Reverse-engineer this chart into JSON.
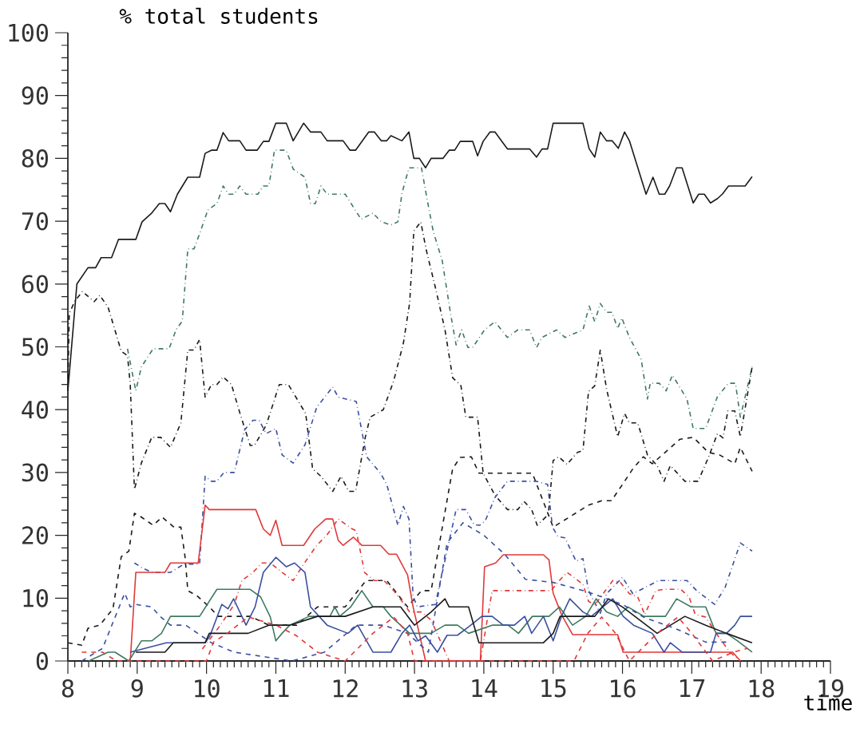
{
  "chart_data": {
    "type": "line",
    "xlabel": "time",
    "ylabel": "% total students",
    "xlim": [
      8,
      19
    ],
    "xticks": [
      8,
      9,
      10,
      11,
      12,
      13,
      14,
      15,
      16,
      17,
      18,
      19
    ],
    "ylim": [
      0,
      100
    ],
    "yticks": [
      0,
      10,
      20,
      30,
      40,
      50,
      60,
      70,
      80,
      90,
      100
    ],
    "series": [
      {
        "color": "#1a1a1a",
        "line_style": "solid",
        "x": [
          8.0,
          8.13,
          8.29,
          8.4,
          8.48,
          8.63,
          8.73,
          8.98,
          9.07,
          9.21,
          9.32,
          9.4,
          9.48,
          9.58,
          9.73,
          9.9,
          9.98,
          10.07,
          10.15,
          10.24,
          10.32,
          10.48,
          10.57,
          10.73,
          10.82,
          10.9,
          11.0,
          11.15,
          11.25,
          11.4,
          11.5,
          11.65,
          11.74,
          11.97,
          12.07,
          12.15,
          12.34,
          12.42,
          12.52,
          12.6,
          12.66,
          12.82,
          12.92,
          12.99,
          13.07,
          13.16,
          13.24,
          13.41,
          13.5,
          13.58,
          13.66,
          13.84,
          13.91,
          13.99,
          14.09,
          14.16,
          14.34,
          14.66,
          14.76,
          14.84,
          14.92,
          15.0,
          15.43,
          15.52,
          15.6,
          15.68,
          15.77,
          15.85,
          15.94,
          16.03,
          16.1,
          16.34,
          16.44,
          16.53,
          16.61,
          16.68,
          16.78,
          16.86,
          17.02,
          17.1,
          17.18,
          17.27,
          17.37,
          17.44,
          17.53,
          17.77,
          17.87
        ],
        "values": [
          43,
          60,
          62.6,
          62.6,
          64.2,
          64.2,
          67.1,
          67.1,
          69.9,
          71.3,
          72.8,
          72.8,
          71.5,
          74.3,
          77,
          77,
          80.8,
          81.3,
          81.3,
          84.1,
          82.8,
          82.8,
          81.3,
          81.3,
          82.7,
          82.7,
          85.6,
          85.6,
          82.8,
          85.6,
          84.2,
          84.2,
          82.8,
          82.8,
          81.3,
          81.3,
          84.2,
          84.2,
          82.8,
          82.8,
          83.6,
          82.8,
          84.2,
          80,
          80,
          78.5,
          80,
          80,
          81.3,
          81.3,
          82.7,
          82.7,
          80.4,
          82.7,
          84.2,
          84.2,
          81.5,
          81.5,
          80.2,
          81.5,
          81.5,
          85.6,
          85.6,
          81.5,
          80.2,
          84.2,
          82.8,
          82.8,
          81.6,
          84.2,
          82.8,
          74.3,
          77,
          74.3,
          74.3,
          75.6,
          78.5,
          78.5,
          72.9,
          74.3,
          74.3,
          72.9,
          73.6,
          74.3,
          75.6,
          75.6,
          77.1
        ]
      },
      {
        "color": "#3f7a62",
        "line_style": "dashdot",
        "x": [
          8.86,
          8.98,
          9.06,
          9.23,
          9.46,
          9.56,
          9.65,
          9.73,
          9.82,
          9.9,
          10.02,
          10.15,
          10.24,
          10.32,
          10.4,
          10.48,
          10.57,
          10.74,
          10.82,
          10.9,
          10.98,
          11.15,
          11.25,
          11.42,
          11.5,
          11.57,
          11.65,
          11.74,
          12.0,
          12.23,
          12.4,
          12.52,
          12.66,
          12.76,
          12.82,
          12.92,
          13.1,
          13.19,
          13.27,
          13.4,
          13.52,
          13.6,
          13.68,
          13.77,
          13.84,
          14.01,
          14.16,
          14.34,
          14.49,
          14.66,
          14.76,
          14.84,
          15.05,
          15.17,
          15.43,
          15.52,
          15.6,
          15.68,
          15.77,
          15.85,
          15.93,
          15.99,
          16.1,
          16.27,
          16.36,
          16.4,
          16.53,
          16.63,
          16.72,
          16.93,
          17.02,
          17.2,
          17.37,
          17.53,
          17.63,
          17.7,
          17.87
        ],
        "values": [
          49.7,
          43,
          46.8,
          49.7,
          49.7,
          52.7,
          54.1,
          65.6,
          65.6,
          68,
          71.8,
          72.8,
          75.6,
          74.3,
          74.3,
          75.6,
          74.3,
          74.3,
          75.6,
          75.6,
          81.3,
          81.3,
          78.3,
          77,
          72.8,
          72.8,
          75.6,
          74.3,
          74.3,
          70.3,
          71.3,
          69.9,
          69.4,
          69.9,
          74.5,
          78.5,
          78.5,
          73,
          68.4,
          63.7,
          55.3,
          50.3,
          52.7,
          49.9,
          49.9,
          52.7,
          54,
          51.5,
          52.7,
          52.7,
          49.9,
          51.5,
          52.7,
          51.5,
          52.7,
          56.5,
          54,
          56.9,
          55.5,
          55.5,
          52.9,
          54.6,
          51.5,
          48,
          41.7,
          44.2,
          44.2,
          43,
          45.5,
          41.7,
          37,
          37,
          42.1,
          44.2,
          44.2,
          38.8,
          46.8
        ]
      },
      {
        "color": "#1a1a1a",
        "line_style": "dashdot",
        "x": [
          8.0,
          8.02,
          8.1,
          8.21,
          8.38,
          8.46,
          8.58,
          8.77,
          8.86,
          8.9,
          8.96,
          9.06,
          9.21,
          9.34,
          9.48,
          9.63,
          9.73,
          9.82,
          9.9,
          9.98,
          10.07,
          10.15,
          10.24,
          10.36,
          10.48,
          10.63,
          10.69,
          10.86,
          11.05,
          11.18,
          11.43,
          11.53,
          11.65,
          11.82,
          11.94,
          12.05,
          12.15,
          12.29,
          12.36,
          12.55,
          12.7,
          12.84,
          12.93,
          12.99,
          13.09,
          13.17,
          13.3,
          13.44,
          13.55,
          13.67,
          13.74,
          13.91,
          13.99,
          14.16,
          14.34,
          14.49,
          14.58,
          14.69,
          14.77,
          14.93,
          15.0,
          15.08,
          15.2,
          15.35,
          15.43,
          15.51,
          15.6,
          15.68,
          15.77,
          15.93,
          16.03,
          16.1,
          16.22,
          16.36,
          16.5,
          16.6,
          16.69,
          16.9,
          17.09,
          17.24,
          17.37,
          17.45,
          17.52,
          17.62,
          17.7,
          17.87
        ],
        "values": [
          43,
          55.3,
          57.3,
          58.8,
          57.2,
          58.2,
          56.3,
          49.3,
          48.6,
          44,
          27.3,
          31.5,
          35.6,
          35.6,
          34,
          37.9,
          49.5,
          49.5,
          51.2,
          42,
          44,
          44,
          45.2,
          44,
          39.5,
          34.3,
          34.3,
          37.5,
          44,
          44,
          39.4,
          30.6,
          29.4,
          27,
          29.4,
          27,
          27,
          35.6,
          38.8,
          40,
          44.6,
          50.6,
          57,
          68.4,
          69.9,
          65.4,
          59.5,
          52.7,
          45.1,
          43.8,
          38.8,
          38.8,
          29.9,
          26.4,
          24.1,
          24.1,
          25.4,
          24.1,
          21.6,
          23.3,
          31.9,
          32.5,
          31.3,
          33.2,
          33.5,
          42.9,
          43.8,
          49.5,
          43.3,
          35.7,
          39.4,
          37.9,
          37.9,
          32.8,
          31.1,
          28.6,
          31.1,
          28.6,
          28.6,
          32.4,
          36.2,
          35.5,
          39.8,
          39.8,
          35.7,
          46.8
        ]
      },
      {
        "color": "#1a1a1a",
        "line_style": "dashed",
        "x": [
          8.0,
          8.2,
          8.29,
          8.46,
          8.65,
          8.77,
          8.88,
          8.96,
          9.06,
          9.23,
          9.36,
          9.53,
          9.63,
          9.69,
          9.73,
          9.87,
          10.04,
          10.17,
          10.63,
          10.9,
          11.3,
          11.6,
          12.0,
          12.3,
          12.6,
          12.9,
          13.1,
          13.24,
          13.55,
          13.66,
          13.82,
          13.93,
          14.28,
          14.7,
          15.0,
          15.51,
          15.7,
          15.84,
          16.0,
          16.15,
          16.3,
          16.43,
          16.83,
          17.02,
          17.24,
          17.4,
          17.62,
          17.7,
          17.87
        ],
        "values": [
          2.9,
          2.5,
          5.2,
          5.7,
          8.3,
          16.6,
          17.5,
          23.5,
          22.9,
          21.6,
          22.9,
          21.3,
          21.3,
          16.6,
          11.2,
          10.3,
          8.6,
          7.1,
          7.1,
          5.7,
          5.7,
          8.6,
          8.6,
          12.8,
          12.8,
          8.6,
          11.2,
          11.2,
          30.6,
          32.4,
          32.5,
          29.9,
          29.9,
          29.9,
          21.3,
          24.8,
          25.5,
          25.5,
          28.1,
          30.6,
          32.5,
          31.4,
          35.3,
          35.6,
          33.2,
          32.8,
          31.4,
          34,
          30.2
        ]
      },
      {
        "color": "#3b4fa0",
        "line_style": "dashdot",
        "x": [
          8.96,
          9.06,
          9.21,
          9.48,
          9.67,
          9.9,
          9.98,
          10.07,
          10.15,
          10.25,
          10.4,
          10.55,
          10.67,
          10.76,
          10.86,
          11.0,
          11.09,
          11.25,
          11.42,
          11.59,
          11.82,
          11.9,
          12.16,
          12.31,
          12.51,
          12.6,
          12.76,
          12.84,
          12.92,
          12.98,
          13.04,
          13.3,
          13.6,
          13.74,
          13.86,
          13.94,
          14.02,
          14.16,
          14.34,
          14.76,
          14.92,
          14.99,
          15.07,
          15.17,
          15.33,
          15.43,
          15.51,
          15.68,
          15.77,
          16.0,
          16.15,
          16.52,
          16.93,
          17.07,
          17.33,
          17.48,
          17.7,
          17.87
        ],
        "values": [
          15.6,
          14.9,
          14.1,
          14.1,
          15.4,
          15.4,
          29.4,
          28.6,
          28.6,
          30,
          30,
          36.8,
          38.3,
          38.3,
          36.2,
          37,
          32.8,
          31.5,
          34.4,
          40.4,
          43.6,
          42,
          41.3,
          32.5,
          29.9,
          28.1,
          21.6,
          24.6,
          22.6,
          10.3,
          8.6,
          9,
          24.1,
          24.1,
          21.7,
          21.6,
          22.3,
          26,
          28.6,
          28.6,
          28.1,
          21.3,
          19.8,
          19.6,
          15.9,
          16.3,
          11.2,
          7.6,
          10.7,
          13.3,
          10.7,
          12.8,
          12.8,
          11.2,
          9,
          11.7,
          18.8,
          17.5
        ]
      },
      {
        "color": "#e0393a",
        "line_style": "solid",
        "x": [
          8.9,
          8.98,
          9.4,
          9.48,
          9.88,
          9.98,
          10.04,
          10.71,
          10.82,
          10.92,
          11.0,
          11.09,
          11.4,
          11.56,
          11.72,
          11.82,
          11.9,
          11.97,
          12.12,
          12.24,
          12.51,
          12.63,
          12.74,
          12.9,
          12.98,
          13.16,
          13.95,
          14.01,
          14.17,
          14.28,
          14.86,
          14.94,
          15.0,
          15.12,
          15.28,
          15.93,
          16.01,
          17.59,
          17.7
        ],
        "values": [
          0,
          14.1,
          14.1,
          15.6,
          15.6,
          24.8,
          24.1,
          24.1,
          21,
          20,
          22.4,
          18.4,
          18.4,
          21,
          22.6,
          22.6,
          19.2,
          18.4,
          19.7,
          18.4,
          18.4,
          17,
          17,
          13.7,
          8.6,
          0,
          0,
          15,
          15.6,
          16.9,
          16.9,
          16.1,
          10.8,
          7.4,
          4.2,
          4.2,
          1.4,
          1.4,
          0
        ]
      },
      {
        "color": "#e0393a",
        "line_style": "dashdot",
        "x": [
          9.94,
          10.2,
          10.4,
          10.51,
          10.67,
          10.8,
          10.92,
          11.09,
          11.25,
          11.4,
          11.59,
          11.74,
          11.9,
          12.09,
          12.16,
          12.28,
          12.42,
          12.56,
          12.7,
          12.82,
          12.93,
          13.1,
          13.24,
          13.5,
          13.95,
          14.12,
          14.34,
          14.97,
          15.09,
          15.2,
          15.3,
          15.43,
          15.51,
          15.6,
          15.86,
          15.97,
          16.1,
          16.22,
          16.32,
          16.48,
          16.6,
          16.84,
          16.96,
          17.05,
          17.2,
          17.35,
          17.55,
          17.7
        ],
        "values": [
          1.9,
          5.7,
          9,
          12.8,
          14.1,
          15.6,
          15.6,
          14.1,
          12.8,
          15.4,
          18.4,
          20.1,
          22.6,
          21.1,
          20.7,
          14.1,
          12.8,
          12.8,
          11.2,
          9.5,
          7.8,
          7.8,
          6.5,
          0,
          0,
          11.2,
          11.2,
          11.2,
          12.8,
          14.1,
          13.3,
          12.2,
          9.5,
          8.9,
          12.8,
          12.5,
          10.7,
          10.2,
          7.4,
          11.2,
          11.4,
          11.4,
          10.2,
          7.4,
          7,
          4.4,
          1.4,
          0
        ]
      },
      {
        "color": "#3f7a62",
        "line_style": "solid",
        "x": [
          8.3,
          8.58,
          8.68,
          8.88,
          9.06,
          9.21,
          9.35,
          9.48,
          9.9,
          10.15,
          10.63,
          10.78,
          10.92,
          11.0,
          11.09,
          11.2,
          11.48,
          11.78,
          11.85,
          11.92,
          12.08,
          12.24,
          12.4,
          12.55,
          12.66,
          12.93,
          13.09,
          13.24,
          13.44,
          13.62,
          13.78,
          14.12,
          14.35,
          14.5,
          14.7,
          14.94,
          15.09,
          15.28,
          15.47,
          15.62,
          15.77,
          15.93,
          16.08,
          16.31,
          16.62,
          16.78,
          16.99,
          17.2,
          17.35,
          17.5,
          17.66,
          17.87
        ],
        "values": [
          0,
          1.4,
          1.4,
          0,
          3.2,
          3.2,
          4.4,
          7.1,
          7.1,
          11.4,
          11.4,
          10.2,
          7,
          3.2,
          4.4,
          5.7,
          7.1,
          7.1,
          8.6,
          7.1,
          8.6,
          11.2,
          8.6,
          8.6,
          7.1,
          4.4,
          4.4,
          4.4,
          5.7,
          5.7,
          4.4,
          5.7,
          5.7,
          4.4,
          7.1,
          7.1,
          8.6,
          5.7,
          7.1,
          9.9,
          7.8,
          7.1,
          8.6,
          7.1,
          7.1,
          9.9,
          8.6,
          8.6,
          4.4,
          4.4,
          3.2,
          1.4
        ]
      },
      {
        "color": "#3b4fa0",
        "line_style": "solid",
        "x": [
          8.9,
          9.42,
          9.98,
          10.05,
          10.22,
          10.31,
          10.39,
          10.57,
          10.7,
          10.82,
          11.0,
          11.15,
          11.27,
          11.42,
          11.5,
          11.74,
          12.04,
          12.18,
          12.4,
          12.66,
          12.82,
          12.93,
          13.05,
          13.16,
          13.33,
          13.47,
          13.62,
          13.79,
          13.97,
          14.12,
          14.28,
          14.44,
          14.59,
          14.69,
          14.86,
          15.0,
          15.12,
          15.24,
          15.43,
          15.55,
          15.86,
          16.01,
          16.16,
          16.43,
          16.6,
          16.69,
          16.86,
          17.27,
          17.35,
          17.5,
          17.62,
          17.7,
          17.87
        ],
        "values": [
          1.4,
          2.9,
          2.9,
          4,
          9,
          8.3,
          9.9,
          5.7,
          8.6,
          14.1,
          16.5,
          15,
          15.6,
          14.1,
          8.6,
          5.7,
          4.4,
          5.7,
          1.4,
          1.4,
          4.4,
          5.7,
          3.2,
          4,
          1.4,
          4.1,
          4.1,
          5.5,
          7.1,
          7.1,
          5.7,
          5.7,
          7.1,
          4.4,
          7.1,
          3.2,
          7.1,
          9.9,
          7.8,
          7.1,
          9.9,
          7.1,
          5.7,
          4.4,
          1.4,
          2.9,
          1.4,
          1.4,
          4.4,
          4.4,
          5.7,
          7.1,
          7.1
        ]
      },
      {
        "color": "#1a1a1a",
        "line_style": "solid",
        "x": [
          8.98,
          9.4,
          9.52,
          9.98,
          10.04,
          10.6,
          10.9,
          11.2,
          11.6,
          12.0,
          12.4,
          12.8,
          13.0,
          13.24,
          13.44,
          13.5,
          13.78,
          13.93,
          14.86,
          15.0,
          15.1,
          15.6,
          15.8,
          16.0,
          16.5,
          16.9,
          17.2,
          17.5,
          17.87
        ],
        "values": [
          1.4,
          1.4,
          2.9,
          2.9,
          4.4,
          4.4,
          5.7,
          5.7,
          7.1,
          7.1,
          8.6,
          8.6,
          5.7,
          7.8,
          9.9,
          8.6,
          8.6,
          2.9,
          2.9,
          4.4,
          7.1,
          7.1,
          9.9,
          8.6,
          4.4,
          7.1,
          5.7,
          4.4,
          2.9
        ]
      },
      {
        "color": "#3b4fa0",
        "line_style": "dashed",
        "x": [
          8.2,
          8.5,
          8.82,
          8.9,
          8.98,
          9.21,
          9.33,
          9.48,
          9.7,
          10.07,
          10.4,
          11.23,
          11.7,
          12.16,
          12.55,
          12.9,
          13.2,
          13.47,
          13.7,
          14.0,
          14.3,
          14.6,
          15.0,
          15.5,
          16.0,
          16.3,
          16.8,
          17.2,
          17.5
        ],
        "values": [
          0,
          2,
          10.8,
          8.6,
          9,
          8.6,
          7.1,
          5.7,
          5.7,
          2.9,
          1.4,
          0,
          1.4,
          5.7,
          5.7,
          4.4,
          1.4,
          18.8,
          22,
          20,
          17,
          13,
          12.5,
          11,
          9,
          7,
          5,
          3,
          3
        ]
      },
      {
        "color": "#e0393a",
        "line_style": "dashed",
        "x": [
          8.2,
          8.5,
          8.7,
          10.0,
          10.1,
          10.3,
          10.6,
          11.0,
          11.3,
          11.6,
          12.0,
          12.4,
          12.7,
          12.9,
          13.0,
          15.3,
          15.5,
          15.7,
          15.9,
          16.1,
          16.5,
          16.8,
          17.0,
          17.3,
          17.6,
          17.8
        ],
        "values": [
          1.4,
          1.4,
          0,
          0,
          3,
          4.4,
          7,
          5.7,
          4,
          1.4,
          0,
          4.4,
          7,
          4.4,
          0,
          0,
          4.4,
          7,
          4.4,
          0,
          4.4,
          7,
          4.4,
          0,
          1.4,
          2
        ]
      }
    ]
  }
}
